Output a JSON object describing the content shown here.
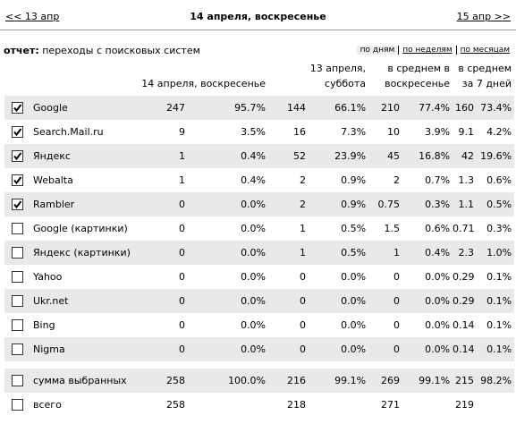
{
  "nav": {
    "prev": "<< 13 апр",
    "title": "14 апреля, воскресенье",
    "next": "15 апр >>"
  },
  "report": {
    "label": "отчет:",
    "name": "переходы с поисковых систем",
    "views": [
      "по дням",
      "по неделям",
      "по месяцам"
    ]
  },
  "table": {
    "headers": [
      "14 апреля, воскресенье",
      "13 апреля, суббота",
      "в среднем в воскресенье",
      "в среднем за 7 дней"
    ],
    "rows": [
      {
        "checked": true,
        "name": "Google",
        "cells": [
          "247",
          "95.7%",
          "144",
          "66.1%",
          "210",
          "77.4%",
          "160",
          "73.4%"
        ]
      },
      {
        "checked": true,
        "name": "Search.Mail.ru",
        "cells": [
          "9",
          "3.5%",
          "16",
          "7.3%",
          "10",
          "3.9%",
          "9.1",
          "4.2%"
        ]
      },
      {
        "checked": true,
        "name": "Яндекс",
        "cells": [
          "1",
          "0.4%",
          "52",
          "23.9%",
          "45",
          "16.8%",
          "42",
          "19.6%"
        ]
      },
      {
        "checked": true,
        "name": "Webalta",
        "cells": [
          "1",
          "0.4%",
          "2",
          "0.9%",
          "2",
          "0.7%",
          "1.3",
          "0.6%"
        ]
      },
      {
        "checked": true,
        "name": "Rambler",
        "cells": [
          "0",
          "0.0%",
          "2",
          "0.9%",
          "0.75",
          "0.3%",
          "1.1",
          "0.5%"
        ]
      },
      {
        "checked": false,
        "name": "Google (картинки)",
        "cells": [
          "0",
          "0.0%",
          "1",
          "0.5%",
          "1.5",
          "0.6%",
          "0.71",
          "0.3%"
        ]
      },
      {
        "checked": false,
        "name": "Яндекс (картинки)",
        "cells": [
          "0",
          "0.0%",
          "1",
          "0.5%",
          "1",
          "0.4%",
          "2.3",
          "1.0%"
        ]
      },
      {
        "checked": false,
        "name": "Yahoo",
        "cells": [
          "0",
          "0.0%",
          "0",
          "0.0%",
          "0",
          "0.0%",
          "0.29",
          "0.1%"
        ]
      },
      {
        "checked": false,
        "name": "Ukr.net",
        "cells": [
          "0",
          "0.0%",
          "0",
          "0.0%",
          "0",
          "0.0%",
          "0.29",
          "0.1%"
        ]
      },
      {
        "checked": false,
        "name": "Bing",
        "cells": [
          "0",
          "0.0%",
          "0",
          "0.0%",
          "0",
          "0.0%",
          "0.14",
          "0.1%"
        ]
      },
      {
        "checked": false,
        "name": "Nigma",
        "cells": [
          "0",
          "0.0%",
          "0",
          "0.0%",
          "0",
          "0.0%",
          "0.14",
          "0.1%"
        ]
      }
    ],
    "summary": [
      {
        "checked": false,
        "name": "сумма выбранных",
        "cells": [
          "258",
          "100.0%",
          "216",
          "99.1%",
          "269",
          "99.1%",
          "215",
          "98.2%"
        ]
      },
      {
        "checked": false,
        "name": "всего",
        "cells": [
          "258",
          null,
          "218",
          null,
          "271",
          null,
          "219",
          null
        ]
      }
    ]
  }
}
